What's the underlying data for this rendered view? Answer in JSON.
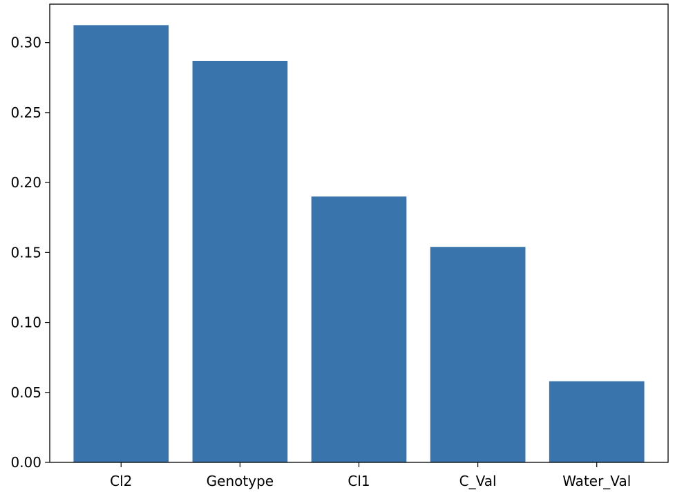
{
  "chart_data": {
    "type": "bar",
    "categories": [
      "Cl2",
      "Genotype",
      "Cl1",
      "C_Val",
      "Water_Val"
    ],
    "values": [
      0.3125,
      0.287,
      0.19,
      0.154,
      0.058
    ],
    "title": "",
    "xlabel": "",
    "ylabel": "",
    "ylim": [
      0,
      0.3275
    ],
    "yticks": [
      0.0,
      0.05,
      0.1,
      0.15,
      0.2,
      0.25,
      0.3
    ],
    "ytick_labels": [
      "0.00",
      "0.05",
      "0.10",
      "0.15",
      "0.20",
      "0.25",
      "0.30"
    ],
    "grid": false,
    "legend": "none",
    "bar_color": "#3a74ad"
  }
}
